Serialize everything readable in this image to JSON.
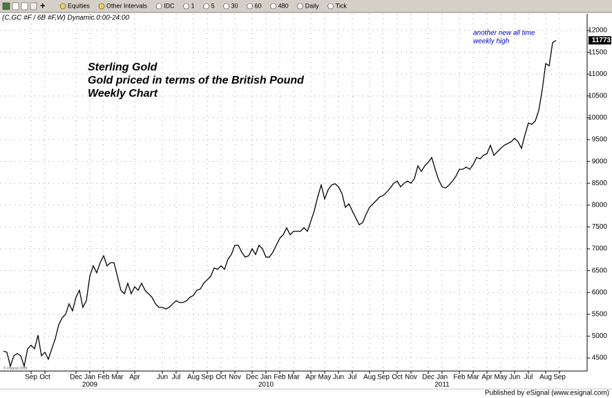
{
  "toolbar": {
    "items": [
      "Equities",
      "Other Intervals",
      "IDC",
      "1",
      "5",
      "30",
      "60",
      "480",
      "Daily",
      "Tick"
    ]
  },
  "header": "(C,GC #F / 6B #F,W) Dynamic.0:00-24:00",
  "copyright": "© eSignal 2009",
  "footer": "Published by eSignal (www.esignal.com)",
  "chart_data": {
    "type": "line",
    "title_lines": [
      "Sterling Gold",
      "Gold priced in terms of the British Pound",
      "Weekly Chart"
    ],
    "annotation_lines": [
      "another new all time",
      "weekly high"
    ],
    "color": "#000000",
    "ylim": [
      4200,
      12380
    ],
    "yticks": [
      4500,
      5000,
      5500,
      6000,
      6500,
      7000,
      7500,
      8000,
      8500,
      9000,
      9500,
      10000,
      10500,
      11000,
      11500,
      12000
    ],
    "grid": true,
    "categories": [
      null,
      null,
      null,
      null,
      null,
      null,
      null,
      null,
      "Sep",
      null,
      null,
      null,
      "Oct",
      null,
      null,
      null,
      null,
      null,
      null,
      null,
      null,
      "Dec",
      null,
      null,
      null,
      "Jan",
      null,
      null,
      null,
      "Feb",
      null,
      null,
      null,
      "Mar",
      null,
      null,
      null,
      null,
      "Apr",
      null,
      null,
      null,
      null,
      null,
      null,
      null,
      "Jun",
      null,
      null,
      null,
      "Jul",
      null,
      null,
      null,
      null,
      "Aug",
      null,
      null,
      null,
      "Sep",
      null,
      null,
      null,
      "Oct",
      null,
      null,
      null,
      "Nov",
      null,
      null,
      null,
      null,
      "Dec",
      null,
      null,
      null,
      "Jan",
      null,
      null,
      null,
      "Feb",
      null,
      null,
      null,
      "Mar",
      null,
      null,
      null,
      null,
      "Apr",
      null,
      null,
      null,
      "May",
      null,
      null,
      null,
      "Jun",
      null,
      null,
      null,
      "Jul",
      null,
      null,
      null,
      null,
      "Aug",
      null,
      null,
      null,
      "Sep",
      null,
      null,
      null,
      "Oct",
      null,
      null,
      null,
      "Nov",
      null,
      null,
      null,
      null,
      "Dec",
      null,
      null,
      null,
      "Jan",
      null,
      null,
      null,
      null,
      "Feb",
      null,
      null,
      null,
      "Mar",
      null,
      null,
      null,
      "Apr",
      null,
      null,
      null,
      "May",
      null,
      null,
      null,
      "Jun",
      null,
      null,
      null,
      "Jul",
      null,
      null,
      null,
      null,
      "Aug",
      null,
      null,
      null,
      "Sep"
    ],
    "category_years": [
      null,
      null,
      null,
      null,
      null,
      null,
      null,
      null,
      null,
      null,
      null,
      null,
      null,
      null,
      null,
      null,
      null,
      null,
      null,
      null,
      null,
      null,
      null,
      null,
      null,
      "2009",
      null,
      null,
      null,
      null,
      null,
      null,
      null,
      null,
      null,
      null,
      null,
      null,
      null,
      null,
      null,
      null,
      null,
      null,
      null,
      null,
      null,
      null,
      null,
      null,
      null,
      null,
      null,
      null,
      null,
      null,
      null,
      null,
      null,
      null,
      null,
      null,
      null,
      null,
      null,
      null,
      null,
      null,
      null,
      null,
      null,
      null,
      null,
      null,
      null,
      null,
      "2010",
      null,
      null,
      null,
      null,
      null,
      null,
      null,
      null,
      null,
      null,
      null,
      null,
      null,
      null,
      null,
      null,
      null,
      null,
      null,
      null,
      null,
      null,
      null,
      null,
      null,
      null,
      null,
      null,
      null,
      null,
      null,
      null,
      null,
      null,
      null,
      null,
      null,
      null,
      null,
      null,
      null,
      null,
      null,
      null,
      null,
      null,
      null,
      null,
      null,
      null,
      "2011",
      null,
      null,
      null,
      null,
      null,
      null,
      null,
      null,
      null,
      null,
      null,
      null,
      null,
      null,
      null,
      null,
      null,
      null,
      null,
      null,
      null,
      null,
      null,
      null,
      null,
      null,
      null,
      null,
      null,
      null,
      null,
      null,
      null,
      null
    ],
    "values": [
      4660,
      4630,
      4310,
      4550,
      4600,
      4550,
      4310,
      4710,
      4790,
      4710,
      5020,
      4550,
      4630,
      4470,
      4710,
      4940,
      5260,
      5420,
      5500,
      5740,
      5580,
      5890,
      6050,
      5660,
      5810,
      6370,
      6610,
      6450,
      6680,
      6840,
      6610,
      6680,
      6680,
      6370,
      6050,
      5970,
      6210,
      5970,
      6130,
      6050,
      6210,
      6050,
      5970,
      5890,
      5740,
      5660,
      5660,
      5620,
      5660,
      5740,
      5810,
      5770,
      5770,
      5810,
      5890,
      5930,
      6050,
      6080,
      6210,
      6290,
      6370,
      6560,
      6530,
      6610,
      6530,
      6760,
      6870,
      7080,
      7080,
      6920,
      6810,
      6840,
      7000,
      6870,
      7080,
      7000,
      6810,
      6810,
      6920,
      7080,
      7240,
      7320,
      7480,
      7320,
      7400,
      7400,
      7400,
      7480,
      7400,
      7630,
      7870,
      8190,
      8460,
      8140,
      8350,
      8460,
      8490,
      8420,
      8270,
      7950,
      8030,
      7870,
      7710,
      7550,
      7600,
      7790,
      7950,
      8030,
      8110,
      8190,
      8220,
      8300,
      8390,
      8500,
      8550,
      8420,
      8500,
      8550,
      8500,
      8610,
      8900,
      8770,
      8900,
      8980,
      9090,
      8820,
      8580,
      8420,
      8390,
      8460,
      8550,
      8660,
      8820,
      8820,
      8870,
      8820,
      8930,
      9090,
      9060,
      9140,
      9180,
      9370,
      9140,
      9220,
      9300,
      9370,
      9410,
      9450,
      9530,
      9450,
      9300,
      9610,
      9880,
      9850,
      9930,
      10170,
      10640,
      11240,
      11190,
      11720,
      11773,
      null
    ]
  }
}
